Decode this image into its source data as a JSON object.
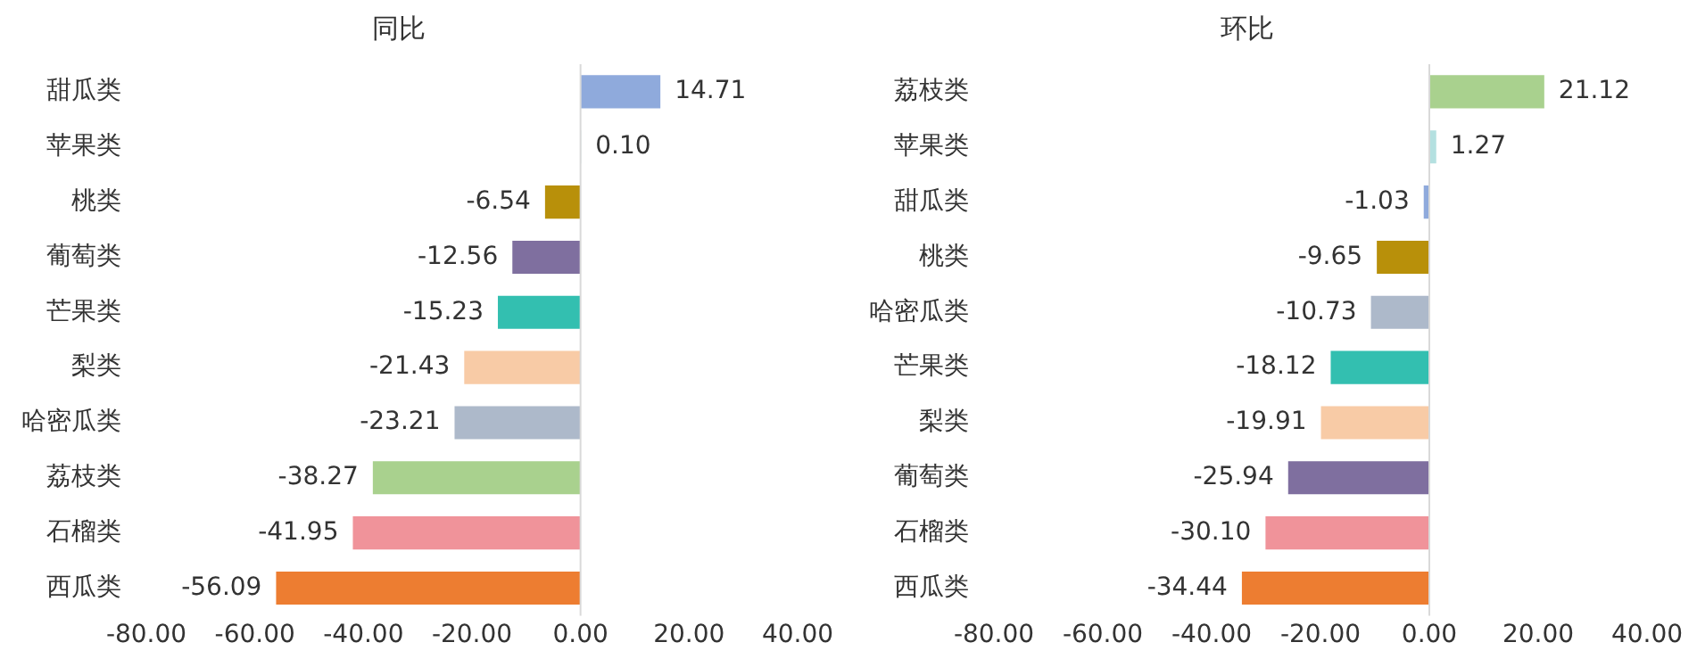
{
  "chart_data": [
    {
      "type": "bar",
      "orientation": "horizontal",
      "title": "同比",
      "categories": [
        "甜瓜类",
        "苹果类",
        "桃类",
        "葡萄类",
        "芒果类",
        "梨类",
        "哈密瓜类",
        "荔枝类",
        "石榴类",
        "西瓜类"
      ],
      "values": [
        14.71,
        0.1,
        -6.54,
        -12.56,
        -15.23,
        -21.43,
        -23.21,
        -38.27,
        -41.95,
        -56.09
      ],
      "value_labels": [
        "14.71",
        "0.10",
        "-6.54",
        "-12.56",
        "-15.23",
        "-21.43",
        "-23.21",
        "-38.27",
        "-41.95",
        "-56.09"
      ],
      "colors": [
        "#8faadc",
        "#b4e0e0",
        "#b8900a",
        "#7f6f9f",
        "#33bfb0",
        "#f8cba6",
        "#adb9ca",
        "#a9d18e",
        "#f0939a",
        "#ed7d31"
      ],
      "xlim": [
        -80,
        40
      ],
      "xticks": [
        {
          "value": -80,
          "label": "-80.00"
        },
        {
          "value": -60,
          "label": "-60.00"
        },
        {
          "value": -40,
          "label": "-40.00"
        },
        {
          "value": -20,
          "label": "-20.00"
        },
        {
          "value": 0,
          "label": "0.00"
        },
        {
          "value": 20,
          "label": "20.00"
        },
        {
          "value": 40,
          "label": "40.00"
        }
      ],
      "ref_lines": [
        {
          "axis": "x",
          "value": 0,
          "color": "#d9d9d9"
        }
      ],
      "grid": false,
      "legend": false
    },
    {
      "type": "bar",
      "orientation": "horizontal",
      "title": "环比",
      "categories": [
        "荔枝类",
        "苹果类",
        "甜瓜类",
        "桃类",
        "哈密瓜类",
        "芒果类",
        "梨类",
        "葡萄类",
        "石榴类",
        "西瓜类"
      ],
      "values": [
        21.12,
        1.27,
        -1.03,
        -9.65,
        -10.73,
        -18.12,
        -19.91,
        -25.94,
        -30.1,
        -34.44
      ],
      "value_labels": [
        "21.12",
        "1.27",
        "-1.03",
        "-9.65",
        "-10.73",
        "-18.12",
        "-19.91",
        "-25.94",
        "-30.10",
        "-34.44"
      ],
      "colors": [
        "#a9d18e",
        "#b4e0e0",
        "#8faadc",
        "#b8900a",
        "#adb9ca",
        "#33bfb0",
        "#f8cba6",
        "#7f6f9f",
        "#f0939a",
        "#ed7d31"
      ],
      "xlim": [
        -80,
        40
      ],
      "xticks": [
        {
          "value": -80,
          "label": "-80.00"
        },
        {
          "value": -60,
          "label": "-60.00"
        },
        {
          "value": -40,
          "label": "-40.00"
        },
        {
          "value": -20,
          "label": "-20.00"
        },
        {
          "value": 0,
          "label": "0.00"
        },
        {
          "value": 20,
          "label": "20.00"
        },
        {
          "value": 40,
          "label": "40.00"
        }
      ],
      "ref_lines": [
        {
          "axis": "x",
          "value": 0,
          "color": "#d9d9d9"
        }
      ],
      "grid": false,
      "legend": false
    }
  ]
}
